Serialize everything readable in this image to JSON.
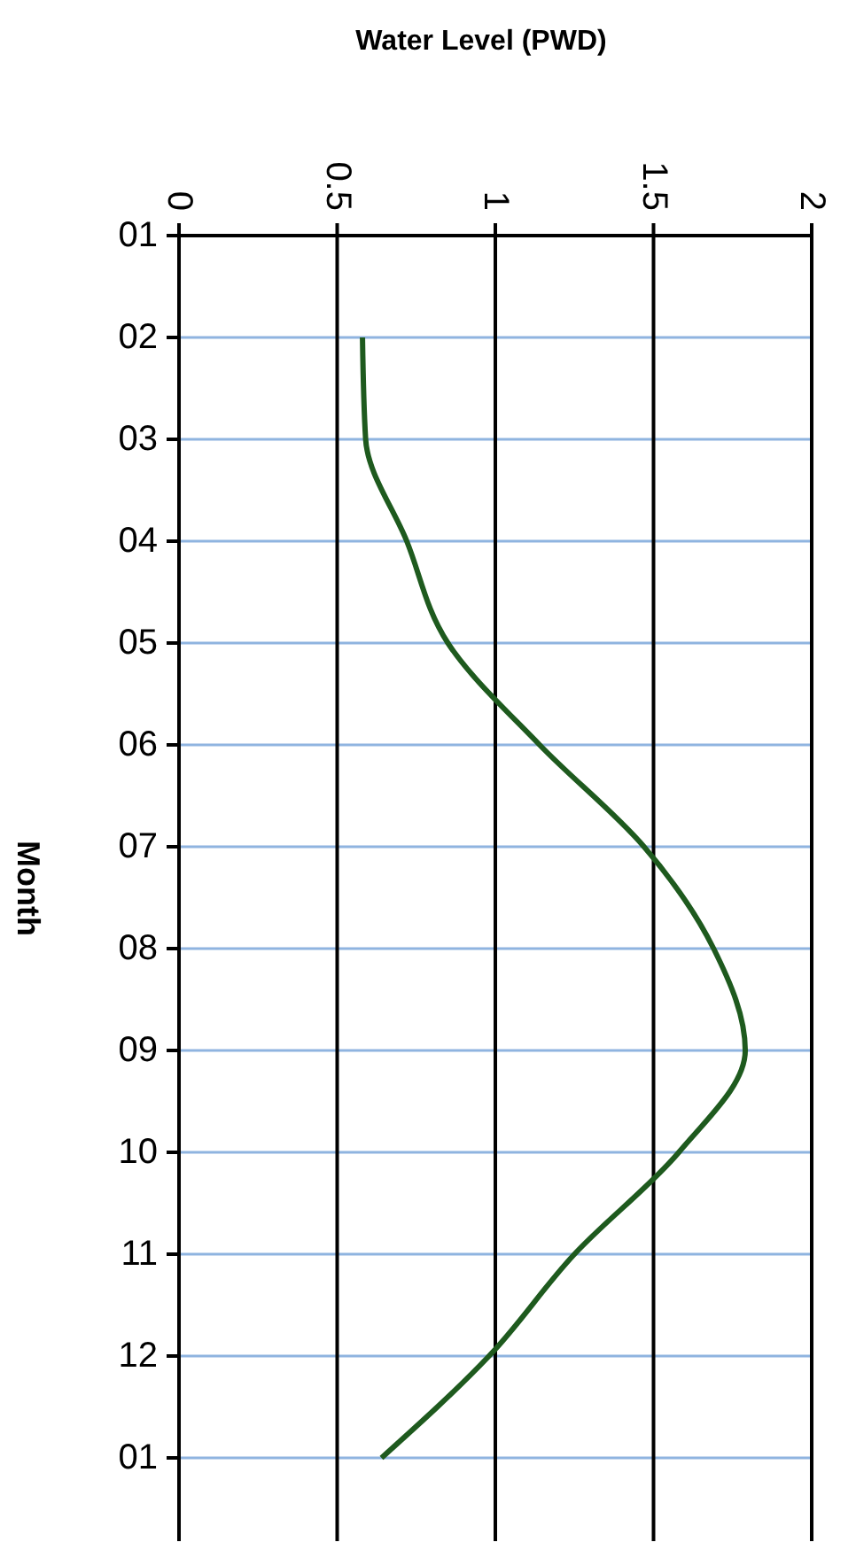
{
  "chart_data": {
    "type": "line",
    "orientation": "horizontal",
    "xlabel": "Water Level (PWD)",
    "ylabel": "Month",
    "xlim": [
      0,
      2
    ],
    "xticks": [
      0,
      0.5,
      1,
      1.5,
      2
    ],
    "categories": [
      "01",
      "02",
      "03",
      "04",
      "05",
      "06",
      "07",
      "08",
      "09",
      "10",
      "11",
      "12",
      "01"
    ],
    "grid": true,
    "marker": "none",
    "line_style": "solid",
    "series": [
      {
        "color": "#1e5a1e",
        "values": [
          null,
          0.58,
          0.59,
          0.72,
          0.85,
          1.14,
          1.47,
          1.69,
          1.79,
          1.58,
          1.25,
          0.98,
          0.64
        ]
      }
    ]
  }
}
